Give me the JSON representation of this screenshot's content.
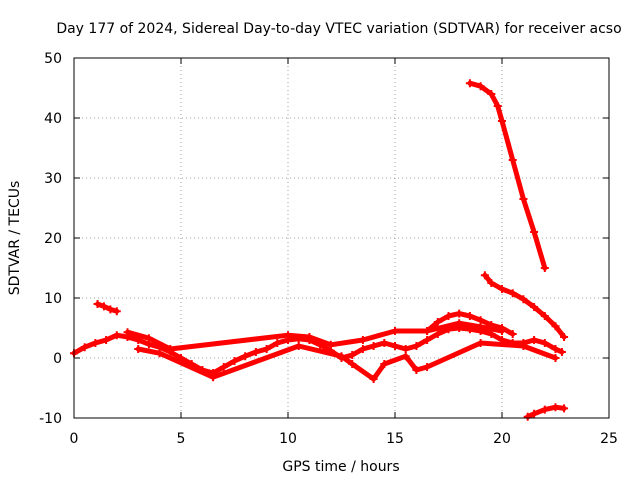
{
  "chart_data": {
    "type": "scatter",
    "title": "Day 177 of 2024, Sidereal Day-to-day VTEC variation (SDTVAR) for receiver acso",
    "xlabel": "GPS time / hours",
    "ylabel": "SDTVAR / TECUs",
    "xlim": [
      0,
      25
    ],
    "ylim": [
      -10,
      50
    ],
    "xticks": [
      0,
      5,
      10,
      15,
      20,
      25
    ],
    "xtick_labels": [
      "0",
      "5",
      "10",
      "15",
      "20",
      "25"
    ],
    "yticks": [
      -10,
      0,
      10,
      20,
      30,
      40,
      50
    ],
    "ytick_labels": [
      "-10",
      "0",
      "10",
      "20",
      "30",
      "40",
      "50"
    ],
    "grid": true,
    "marker_color": "#ff0000",
    "series": [
      {
        "name": "main-trace",
        "x": [
          0.0,
          0.5,
          1.0,
          1.5,
          2.0,
          2.5,
          3.0,
          3.5,
          4.0,
          4.5,
          5.0,
          5.5,
          6.0,
          6.5,
          7.0,
          7.5,
          8.0,
          8.5,
          9.0,
          9.5,
          10.0,
          10.5,
          11.0,
          11.5,
          12.0,
          12.5,
          13.0,
          13.5,
          14.0,
          14.5,
          15.0,
          15.5,
          16.0,
          16.5,
          17.0,
          17.5,
          18.0,
          18.5,
          19.0,
          19.5,
          20.0,
          20.5,
          21.0,
          21.5,
          22.0,
          22.5,
          22.8
        ],
        "y": [
          0.8,
          1.8,
          2.5,
          3.0,
          3.8,
          3.5,
          3.0,
          2.3,
          1.8,
          1.0,
          0.0,
          -1.0,
          -2.0,
          -2.5,
          -1.5,
          -0.5,
          0.3,
          1.0,
          1.5,
          2.5,
          3.0,
          3.2,
          3.0,
          2.2,
          1.2,
          0.0,
          0.5,
          1.5,
          2.0,
          2.5,
          2.0,
          1.5,
          2.0,
          3.0,
          4.0,
          4.8,
          5.0,
          4.8,
          4.5,
          4.0,
          3.0,
          2.5,
          2.5,
          3.0,
          2.5,
          1.5,
          1.0
        ]
      },
      {
        "name": "spread-upper",
        "x": [
          2.5,
          3.5,
          4.5,
          10.0,
          11.0,
          12.0,
          13.5,
          15.0,
          16.5,
          18.0,
          19.0,
          20.0
        ],
        "y": [
          4.3,
          3.3,
          1.5,
          3.8,
          3.5,
          2.2,
          3.0,
          4.5,
          4.5,
          5.8,
          5.2,
          4.5
        ]
      },
      {
        "name": "spread-lower",
        "x": [
          3.0,
          4.0,
          6.5,
          10.5,
          12.5,
          13.0,
          14.0,
          14.5,
          15.5,
          16.0,
          16.5,
          19.0,
          21.0,
          22.5
        ],
        "y": [
          1.5,
          0.8,
          -3.2,
          2.0,
          0.3,
          -1.0,
          -3.5,
          -1.0,
          0.3,
          -2.0,
          -1.5,
          2.5,
          2.0,
          0.0
        ]
      },
      {
        "name": "early-segment",
        "x": [
          1.1,
          1.4,
          1.7,
          2.0
        ],
        "y": [
          9.0,
          8.6,
          8.1,
          7.8
        ]
      },
      {
        "name": "arc-17-20",
        "x": [
          16.5,
          17.0,
          17.5,
          18.0,
          18.5,
          19.0,
          19.5,
          20.0,
          20.5
        ],
        "y": [
          4.5,
          6.0,
          7.0,
          7.4,
          7.0,
          6.3,
          5.5,
          5.0,
          4.0
        ]
      },
      {
        "name": "high-steep",
        "x": [
          18.5,
          19.0,
          19.5,
          19.8,
          20.0,
          20.5,
          21.0,
          21.5,
          22.0
        ],
        "y": [
          45.8,
          45.3,
          44.0,
          42.0,
          39.5,
          33.0,
          26.5,
          21.0,
          15.0
        ]
      },
      {
        "name": "mid-decline",
        "x": [
          19.2,
          19.5,
          20.0,
          20.5,
          21.0,
          21.5,
          22.0,
          22.5,
          22.9
        ],
        "y": [
          13.8,
          12.5,
          11.5,
          10.8,
          9.8,
          8.5,
          7.0,
          5.3,
          3.5
        ]
      },
      {
        "name": "negative-segment",
        "x": [
          21.2,
          21.5,
          22.0,
          22.5,
          22.9
        ],
        "y": [
          -9.8,
          -9.3,
          -8.6,
          -8.2,
          -8.4
        ]
      }
    ]
  }
}
